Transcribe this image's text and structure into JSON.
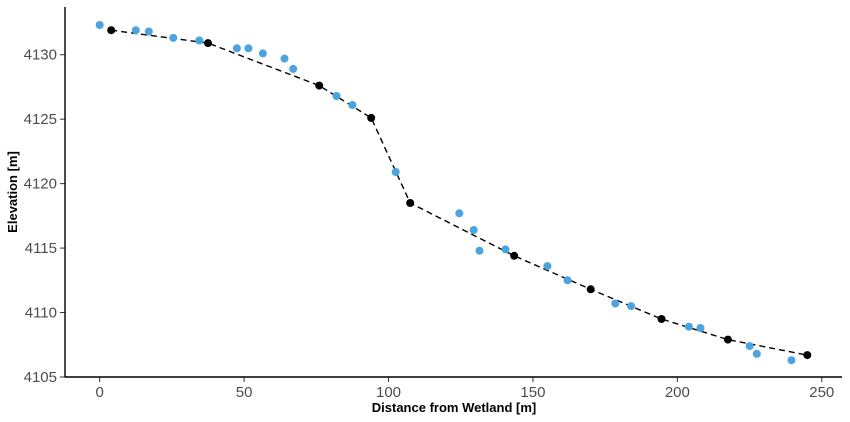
{
  "chart_data": {
    "type": "scatter",
    "xlabel": "Distance from Wetland [m]",
    "ylabel": "Elevation [m]",
    "xlim": [
      -12,
      257
    ],
    "ylim": [
      4105,
      4133.7
    ],
    "x_ticks": [
      0,
      50,
      100,
      150,
      200,
      250
    ],
    "y_ticks": [
      4105,
      4110,
      4115,
      4120,
      4125,
      4130
    ],
    "grid": false,
    "legend": "none",
    "series": [
      {
        "color": "#000000",
        "marker": "black-point",
        "line": "dashed",
        "points": [
          [
            4,
            4131.9
          ],
          [
            37.5,
            4130.9
          ],
          [
            76,
            4127.6
          ],
          [
            94,
            4125.1
          ],
          [
            107.5,
            4118.5
          ],
          [
            143.5,
            4114.4
          ],
          [
            170,
            4111.8
          ],
          [
            194.5,
            4109.5
          ],
          [
            217.5,
            4107.9
          ],
          [
            245,
            4106.7
          ]
        ]
      },
      {
        "color": "#4ba3e0",
        "marker": "blue-point",
        "points": [
          [
            0,
            4132.3
          ],
          [
            12.5,
            4131.9
          ],
          [
            17,
            4131.8
          ],
          [
            25.5,
            4131.3
          ],
          [
            34.5,
            4131.1
          ],
          [
            47.5,
            4130.5
          ],
          [
            51.5,
            4130.5
          ],
          [
            56.5,
            4130.1
          ],
          [
            64,
            4129.7
          ],
          [
            67,
            4128.9
          ],
          [
            82,
            4126.8
          ],
          [
            87.5,
            4126.1
          ],
          [
            102.5,
            4120.9
          ],
          [
            124.5,
            4117.7
          ],
          [
            129.5,
            4116.4
          ],
          [
            131.5,
            4114.8
          ],
          [
            140.5,
            4114.9
          ],
          [
            155,
            4113.6
          ],
          [
            162,
            4112.5
          ],
          [
            178.5,
            4110.7
          ],
          [
            184,
            4110.5
          ],
          [
            204,
            4108.9
          ],
          [
            208,
            4108.8
          ],
          [
            225,
            4107.4
          ],
          [
            227.5,
            4106.8
          ],
          [
            239.5,
            4106.3
          ]
        ]
      }
    ]
  }
}
